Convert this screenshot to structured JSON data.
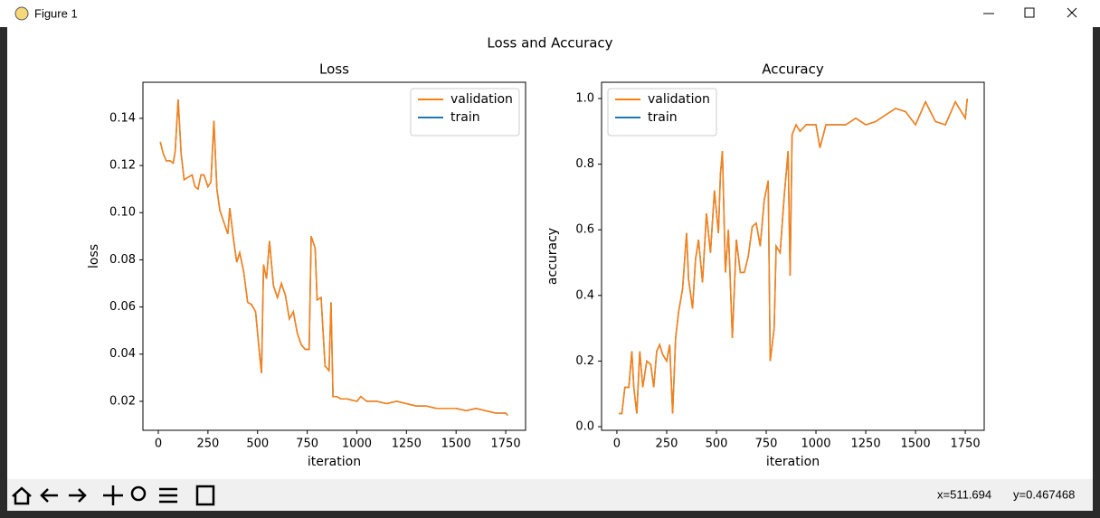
{
  "window": {
    "title": "Figure 1"
  },
  "suptitle": "Loss and Accuracy",
  "status": {
    "x": "x=511.694",
    "y": "y=0.467468"
  },
  "chart_data": [
    {
      "type": "line",
      "title": "Loss",
      "xlabel": "iteration",
      "ylabel": "loss",
      "legend": "upper right",
      "xlim": [
        -77.5,
        1850
      ],
      "ylim": [
        0.0077,
        0.1553
      ],
      "xticks": [
        0,
        250,
        500,
        750,
        1000,
        1250,
        1500,
        1750
      ],
      "yticks": [
        {
          "value": 0.02,
          "label": "0.02"
        },
        {
          "value": 0.04,
          "label": "0.04"
        },
        {
          "value": 0.06,
          "label": "0.06"
        },
        {
          "value": 0.08,
          "label": "0.08"
        },
        {
          "value": 0.1,
          "label": "0.10"
        },
        {
          "value": 0.12,
          "label": "0.12"
        },
        {
          "value": 0.14,
          "label": "0.14"
        }
      ],
      "x": [
        10,
        25,
        40,
        60,
        75,
        85,
        100,
        115,
        130,
        150,
        170,
        185,
        200,
        215,
        230,
        250,
        265,
        280,
        295,
        310,
        330,
        350,
        360,
        380,
        395,
        410,
        430,
        450,
        470,
        490,
        510,
        520,
        530,
        545,
        560,
        580,
        600,
        620,
        640,
        660,
        680,
        700,
        720,
        740,
        760,
        770,
        790,
        800,
        820,
        840,
        860,
        870,
        880,
        900,
        920,
        950,
        1000,
        1020,
        1050,
        1100,
        1150,
        1200,
        1250,
        1300,
        1350,
        1400,
        1450,
        1500,
        1550,
        1600,
        1650,
        1700,
        1750,
        1760
      ],
      "series": [
        {
          "name": "validation",
          "color": "#ff7f0e",
          "values": [
            0.13,
            0.125,
            0.122,
            0.122,
            0.121,
            0.126,
            0.148,
            0.125,
            0.114,
            0.115,
            0.116,
            0.111,
            0.11,
            0.116,
            0.116,
            0.111,
            0.113,
            0.139,
            0.11,
            0.101,
            0.096,
            0.091,
            0.102,
            0.088,
            0.079,
            0.083,
            0.075,
            0.062,
            0.061,
            0.058,
            0.04,
            0.032,
            0.078,
            0.072,
            0.088,
            0.069,
            0.064,
            0.07,
            0.065,
            0.055,
            0.058,
            0.049,
            0.044,
            0.042,
            0.042,
            0.09,
            0.085,
            0.063,
            0.064,
            0.035,
            0.033,
            0.062,
            0.022,
            0.022,
            0.021,
            0.021,
            0.02,
            0.022,
            0.02,
            0.02,
            0.019,
            0.02,
            0.019,
            0.018,
            0.018,
            0.017,
            0.017,
            0.017,
            0.016,
            0.017,
            0.016,
            0.015,
            0.015,
            0.014
          ]
        },
        {
          "name": "train",
          "color": "#1f77b4",
          "values": [
            0.13,
            0.125,
            0.122,
            0.122,
            0.121,
            0.126,
            0.148,
            0.125,
            0.114,
            0.115,
            0.116,
            0.111,
            0.11,
            0.116,
            0.116,
            0.111,
            0.113,
            0.139,
            0.11,
            0.101,
            0.096,
            0.091,
            0.102,
            0.088,
            0.079,
            0.083,
            0.075,
            0.062,
            0.061,
            0.058,
            0.04,
            0.032,
            0.078,
            0.072,
            0.088,
            0.069,
            0.064,
            0.07,
            0.065,
            0.055,
            0.058,
            0.049,
            0.044,
            0.042,
            0.042,
            0.09,
            0.085,
            0.063,
            0.064,
            0.035,
            0.033,
            0.062,
            0.022,
            0.022,
            0.021,
            0.021,
            0.02,
            0.022,
            0.02,
            0.02,
            0.019,
            0.02,
            0.019,
            0.018,
            0.018,
            0.017,
            0.017,
            0.017,
            0.016,
            0.017,
            0.016,
            0.015,
            0.015,
            0.014
          ]
        }
      ]
    },
    {
      "type": "line",
      "title": "Accuracy",
      "xlabel": "iteration",
      "ylabel": "accuracy",
      "legend": "upper left",
      "xlim": [
        -77,
        1845
      ],
      "ylim": [
        -0.011,
        1.0496
      ],
      "xticks": [
        0,
        250,
        500,
        750,
        1000,
        1250,
        1500,
        1750
      ],
      "yticks": [
        {
          "value": 0,
          "label": "0.0"
        },
        {
          "value": 0.2,
          "label": "0.2"
        },
        {
          "value": 0.4,
          "label": "0.4"
        },
        {
          "value": 0.6,
          "label": "0.6"
        },
        {
          "value": 0.8,
          "label": "0.8"
        },
        {
          "value": 1,
          "label": "1.0"
        }
      ],
      "x": [
        10,
        25,
        40,
        60,
        75,
        85,
        100,
        115,
        130,
        150,
        170,
        185,
        200,
        215,
        230,
        250,
        265,
        280,
        295,
        310,
        330,
        350,
        360,
        380,
        395,
        410,
        430,
        450,
        470,
        490,
        510,
        520,
        530,
        545,
        560,
        580,
        600,
        620,
        640,
        660,
        680,
        700,
        720,
        740,
        760,
        770,
        790,
        800,
        820,
        840,
        860,
        870,
        880,
        900,
        920,
        950,
        1000,
        1020,
        1050,
        1100,
        1150,
        1200,
        1250,
        1300,
        1350,
        1400,
        1450,
        1500,
        1550,
        1600,
        1650,
        1700,
        1750,
        1760
      ],
      "series": [
        {
          "name": "validation",
          "color": "#ff7f0e",
          "values": [
            0.04,
            0.04,
            0.12,
            0.12,
            0.23,
            0.12,
            0.04,
            0.23,
            0.12,
            0.2,
            0.19,
            0.12,
            0.23,
            0.25,
            0.22,
            0.2,
            0.25,
            0.04,
            0.27,
            0.35,
            0.42,
            0.59,
            0.45,
            0.36,
            0.51,
            0.57,
            0.44,
            0.65,
            0.53,
            0.72,
            0.59,
            0.77,
            0.84,
            0.47,
            0.6,
            0.27,
            0.57,
            0.47,
            0.47,
            0.52,
            0.61,
            0.62,
            0.55,
            0.69,
            0.75,
            0.2,
            0.3,
            0.55,
            0.53,
            0.7,
            0.84,
            0.46,
            0.89,
            0.92,
            0.9,
            0.92,
            0.92,
            0.85,
            0.92,
            0.92,
            0.92,
            0.94,
            0.92,
            0.93,
            0.95,
            0.97,
            0.96,
            0.92,
            0.99,
            0.93,
            0.92,
            0.99,
            0.94,
            1.0
          ]
        },
        {
          "name": "train",
          "color": "#1f77b4",
          "values": [
            0.04,
            0.04,
            0.12,
            0.12,
            0.23,
            0.12,
            0.04,
            0.23,
            0.12,
            0.2,
            0.19,
            0.12,
            0.23,
            0.25,
            0.22,
            0.2,
            0.25,
            0.04,
            0.27,
            0.35,
            0.42,
            0.59,
            0.45,
            0.36,
            0.51,
            0.57,
            0.44,
            0.65,
            0.53,
            0.72,
            0.59,
            0.77,
            0.84,
            0.47,
            0.6,
            0.27,
            0.57,
            0.47,
            0.47,
            0.52,
            0.61,
            0.62,
            0.55,
            0.69,
            0.75,
            0.2,
            0.3,
            0.55,
            0.53,
            0.7,
            0.84,
            0.46,
            0.89,
            0.92,
            0.9,
            0.92,
            0.92,
            0.85,
            0.92,
            0.92,
            0.92,
            0.94,
            0.92,
            0.93,
            0.95,
            0.97,
            0.96,
            0.92,
            0.99,
            0.93,
            0.92,
            0.99,
            0.94,
            1.0
          ]
        }
      ]
    }
  ]
}
